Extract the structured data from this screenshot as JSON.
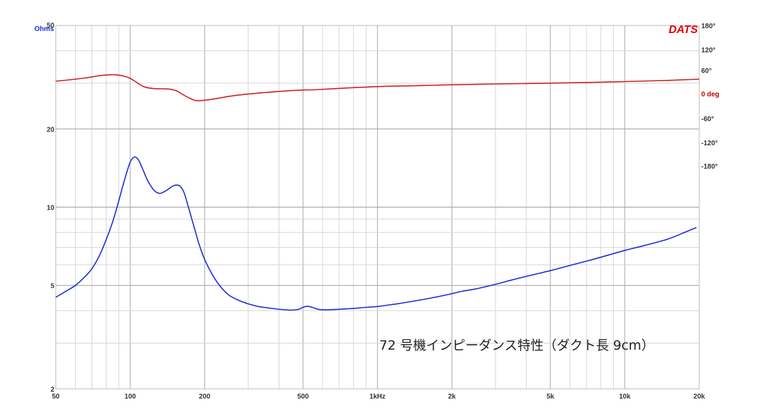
{
  "chart_data": {
    "type": "line",
    "annotation": "72 号機インピーダンス特性（ダクト長 9cm）",
    "logo": "DATS",
    "x_axis": {
      "scale": "log",
      "range": [
        50,
        20000
      ],
      "tick_values": [
        50,
        100,
        200,
        500,
        1000,
        2000,
        5000,
        10000,
        20000
      ],
      "tick_labels": [
        "50",
        "100",
        "200",
        "500",
        "1kHz",
        "2k",
        "5k",
        "10k",
        "20k"
      ]
    },
    "y_left": {
      "scale": "log",
      "unit": "Ohms",
      "range": [
        2,
        50
      ],
      "tick_values": [
        2,
        5,
        10,
        20,
        50
      ],
      "tick_labels": [
        "2",
        "5",
        "10",
        "20",
        "50"
      ]
    },
    "y_right": {
      "unit": "0 deg",
      "tick_labels": [
        "180°",
        "120°",
        "60°",
        "0 deg",
        "-60°",
        "-120°",
        "-180°"
      ]
    },
    "grid": true,
    "series": [
      {
        "color": "#1a2bd0",
        "axis": "left",
        "x": [
          50,
          55,
          60,
          65,
          70,
          75,
          80,
          85,
          90,
          95,
          100,
          104,
          108,
          112,
          118,
          125,
          132,
          140,
          150,
          158,
          165,
          172,
          180,
          190,
          200,
          215,
          230,
          250,
          275,
          300,
          330,
          360,
          400,
          450,
          480,
          500,
          520,
          545,
          575,
          620,
          700,
          800,
          900,
          1000,
          1200,
          1400,
          1700,
          2000,
          2200,
          2500,
          3000,
          3500,
          4000,
          5000,
          6000,
          7000,
          8000,
          10000,
          12000,
          15000,
          18000,
          19500
        ],
        "y": [
          4.5,
          4.75,
          5.0,
          5.35,
          5.8,
          6.5,
          7.5,
          8.8,
          10.6,
          12.8,
          14.9,
          15.6,
          15.2,
          14.1,
          12.6,
          11.6,
          11.3,
          11.6,
          12.1,
          12.1,
          11.4,
          10.0,
          8.6,
          7.2,
          6.3,
          5.5,
          5.0,
          4.6,
          4.38,
          4.25,
          4.15,
          4.1,
          4.05,
          4.02,
          4.05,
          4.12,
          4.16,
          4.12,
          4.05,
          4.03,
          4.05,
          4.08,
          4.12,
          4.15,
          4.25,
          4.35,
          4.5,
          4.65,
          4.75,
          4.85,
          5.05,
          5.25,
          5.42,
          5.7,
          5.97,
          6.2,
          6.42,
          6.82,
          7.12,
          7.55,
          8.1,
          8.35
        ]
      },
      {
        "color": "#cc1f1f",
        "axis": "right",
        "x": [
          50,
          55,
          60,
          65,
          70,
          75,
          80,
          85,
          90,
          95,
          100,
          105,
          110,
          115,
          125,
          135,
          145,
          155,
          165,
          175,
          185,
          200,
          220,
          250,
          300,
          400,
          500,
          550,
          700,
          1000,
          1500,
          2000,
          3000,
          5000,
          8000,
          10000,
          15000,
          20000
        ],
        "y": [
          31,
          33.5,
          36,
          38.5,
          41.5,
          44.5,
          46.5,
          47,
          46,
          43,
          38,
          30,
          22,
          16,
          12.5,
          12,
          11,
          6,
          -4,
          -12,
          -17.5,
          -16.5,
          -13,
          -7,
          -1,
          5.5,
          9,
          9.5,
          13,
          17.5,
          20,
          22,
          24,
          26,
          28.5,
          30,
          33,
          36
        ]
      }
    ]
  }
}
